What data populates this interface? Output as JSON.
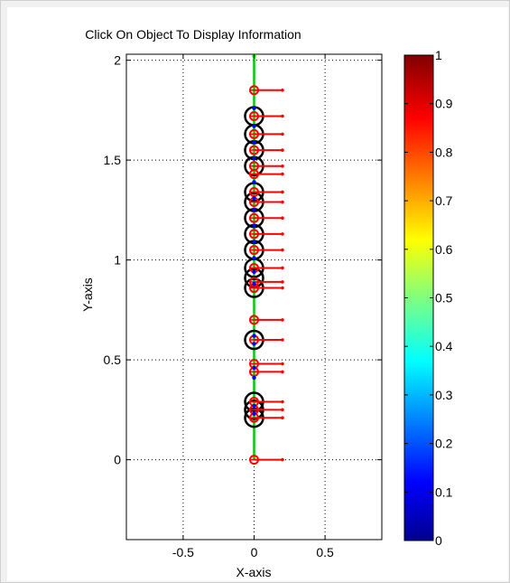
{
  "chart_data": {
    "type": "scatter",
    "title": "Click On Object To Display Information",
    "xlabel": "X-axis",
    "ylabel": "Y-axis",
    "xlim": [
      -0.9,
      0.9
    ],
    "ylim": [
      -0.4,
      2.03
    ],
    "x_ticks": [
      -0.5,
      0,
      0.5
    ],
    "y_ticks": [
      0,
      0.5,
      1,
      1.5,
      2
    ],
    "x_tick_labels": [
      "-0.5",
      "0",
      "0.5"
    ],
    "y_tick_labels": [
      "0",
      "0.5",
      "1",
      "1.5",
      "2"
    ],
    "grid": true,
    "grid_style": "dotted",
    "colormap": "jet",
    "colorbar": {
      "limits": [
        0,
        1
      ],
      "ticks": [
        0,
        0.1,
        0.2,
        0.3,
        0.4,
        0.5,
        0.6,
        0.7,
        0.8,
        0.9,
        1
      ],
      "tick_labels": [
        "0",
        "0.1",
        "0.2",
        "0.3",
        "0.4",
        "0.5",
        "0.6",
        "0.7",
        "0.8",
        "0.9",
        "1"
      ]
    },
    "axis_line": {
      "x": 0,
      "y_from": 0,
      "y_to": 2.03,
      "color": "#00cc00"
    },
    "circles": {
      "color": "#000000",
      "y": [
        0.21,
        0.25,
        0.29,
        0.6,
        0.86,
        0.91,
        0.96,
        1.05,
        1.13,
        1.21,
        1.29,
        1.34,
        1.47,
        1.55,
        1.63,
        1.72
      ]
    },
    "markers": {
      "color": "#ff0000",
      "arrow_length": 0.2,
      "y": [
        0,
        0.21,
        0.25,
        0.29,
        0.44,
        0.48,
        0.6,
        0.7,
        0.86,
        0.89,
        0.96,
        1.05,
        1.13,
        1.21,
        1.29,
        1.34,
        1.43,
        1.47,
        1.55,
        1.63,
        1.72,
        1.85
      ]
    },
    "dots": {
      "color": "#0000ff",
      "y": [
        0.23,
        0.27,
        0.41,
        0.46,
        0.58,
        0.62,
        0.88,
        0.94,
        1.01,
        1.09,
        1.17,
        1.25,
        1.31,
        1.39,
        1.51,
        1.59,
        1.67,
        1.76
      ]
    }
  }
}
